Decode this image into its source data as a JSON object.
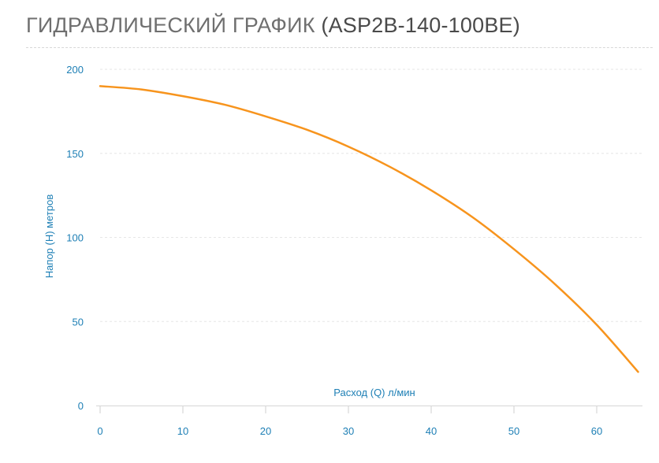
{
  "title": {
    "main": "ГИДРАВЛИЧЕСКИЙ ГРАФИК",
    "model": "(ASP2B-140-100BE)"
  },
  "colors": {
    "curve": "#f7941d",
    "axis_text": "#1d7fb5",
    "grid": "#e6e6e6",
    "title": "#6f6f6f"
  },
  "chart_data": {
    "type": "line",
    "title": "ГИДРАВЛИЧЕСКИЙ ГРАФИК (ASP2B-140-100BE)",
    "xlabel": "Расход (Q) л/мин",
    "ylabel": "Напор (H) метров",
    "xlim": [
      0,
      66
    ],
    "ylim": [
      0,
      200
    ],
    "x_ticks": [
      "0",
      "10",
      "20",
      "30",
      "40",
      "50",
      "60"
    ],
    "y_ticks": [
      "0",
      "50",
      "100",
      "150",
      "200"
    ],
    "grid": "horizontal",
    "series": [
      {
        "name": "",
        "color": "#f7941d",
        "x": [
          0,
          5,
          10,
          15,
          20,
          25,
          30,
          35,
          40,
          45,
          50,
          55,
          60,
          65
        ],
        "y": [
          190,
          188,
          184,
          179,
          172,
          164,
          154,
          142,
          128,
          112,
          93,
          72,
          48,
          20
        ]
      }
    ]
  }
}
